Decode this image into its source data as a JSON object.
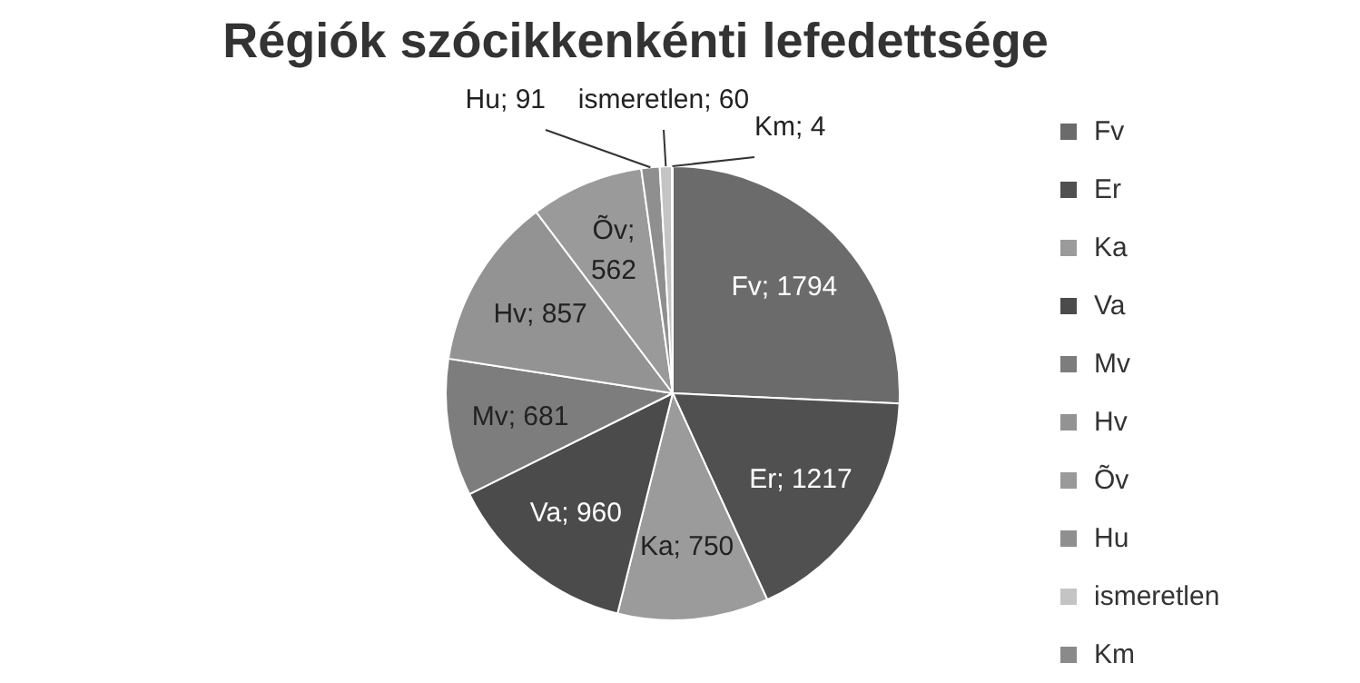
{
  "chart_data": {
    "type": "pie",
    "title": "Régiók szócikkenkénti lefedettsége",
    "categories": [
      "Fv",
      "Er",
      "Ka",
      "Va",
      "Mv",
      "Hv",
      "Õv",
      "Hu",
      "ismeretlen",
      "Km"
    ],
    "values": [
      1794,
      1217,
      750,
      960,
      681,
      857,
      562,
      91,
      60,
      4
    ],
    "colors": [
      "#6b6b6b",
      "#505050",
      "#9b9b9b",
      "#4b4b4b",
      "#7d7d7d",
      "#939393",
      "#9a9a9a",
      "#8f8f8f",
      "#c4c4c4",
      "#8a8a8a"
    ],
    "value_labels": [
      "Fv; 1794",
      "Er; 1217",
      "Ka; 750",
      "Va; 960",
      "Mv; 681",
      "Hv; 857",
      "Õv; 562",
      "Hu; 91",
      "ismeretlen; 60",
      "Km; 4"
    ],
    "legend": "right"
  }
}
